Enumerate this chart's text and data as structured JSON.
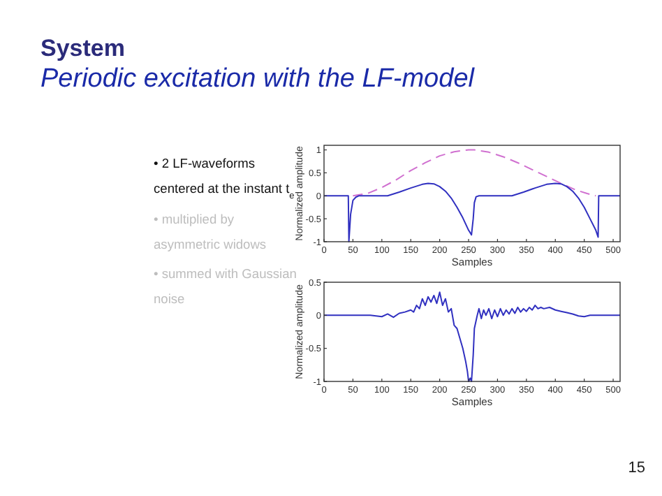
{
  "chart_data": [
    {
      "type": "other",
      "title": "System",
      "subtitle": "Periodic excitation with the LF-model",
      "annotations": [
        "• 2 LF-waveforms\ncentered at the instant t$_{e}$",
        "• multiplied by\nasymmetric widows",
        "• summed with Gaussian\nnoise",
        "15"
      ]
    },
    {
      "type": "line",
      "xlabel": "Samples",
      "ylabel": "Normalized amplitude",
      "xlim": [
        0,
        512
      ],
      "ylim": [
        -1,
        1.1
      ],
      "xticks": [
        0,
        50,
        100,
        150,
        200,
        250,
        300,
        350,
        400,
        450,
        500
      ],
      "yticks": [
        -1,
        -0.5,
        0,
        0.5,
        1
      ],
      "grid": false,
      "series": [
        {
          "color": "#d070d0",
          "line_style": "dashed",
          "x": [
            50,
            75,
            100,
            125,
            150,
            175,
            200,
            225,
            250,
            260,
            285,
            310,
            335,
            360,
            385,
            410,
            435,
            455,
            470
          ],
          "values": [
            0,
            0.05,
            0.18,
            0.35,
            0.55,
            0.72,
            0.87,
            0.96,
            1,
            1,
            0.95,
            0.85,
            0.72,
            0.57,
            0.42,
            0.27,
            0.13,
            0.05,
            0
          ]
        },
        {
          "color": "#3030c0",
          "line_style": "solid",
          "x": [
            0,
            42,
            43,
            46,
            50,
            55,
            60,
            110,
            130,
            150,
            170,
            180,
            190,
            200,
            210,
            220,
            230,
            240,
            250,
            255,
            258,
            260,
            263,
            268,
            325,
            345,
            365,
            385,
            400,
            410,
            420,
            430,
            440,
            450,
            460,
            470,
            474,
            475,
            512
          ],
          "values": [
            0,
            0,
            -1,
            -0.4,
            -0.1,
            -0.03,
            0,
            0,
            0.08,
            0.17,
            0.25,
            0.27,
            0.26,
            0.2,
            0.1,
            -0.05,
            -0.25,
            -0.48,
            -0.75,
            -0.85,
            -0.5,
            -0.15,
            -0.02,
            0,
            0,
            0.08,
            0.17,
            0.25,
            0.27,
            0.26,
            0.2,
            0.1,
            -0.05,
            -0.25,
            -0.5,
            -0.75,
            -0.9,
            0,
            0
          ]
        }
      ]
    },
    {
      "type": "line",
      "xlabel": "Samples",
      "ylabel": "Normalized amplitude",
      "xlim": [
        0,
        512
      ],
      "ylim": [
        -1,
        0.5
      ],
      "xticks": [
        0,
        50,
        100,
        150,
        200,
        250,
        300,
        350,
        400,
        450,
        500
      ],
      "yticks": [
        -1,
        -0.5,
        0,
        0.5
      ],
      "grid": false,
      "series": [
        {
          "color": "#3030c0",
          "line_style": "solid",
          "x": [
            0,
            80,
            100,
            110,
            120,
            130,
            140,
            150,
            155,
            160,
            165,
            170,
            175,
            180,
            185,
            190,
            195,
            200,
            205,
            210,
            215,
            220,
            225,
            230,
            235,
            240,
            245,
            248,
            250,
            253,
            255,
            258,
            260,
            265,
            268,
            272,
            276,
            280,
            285,
            290,
            295,
            300,
            305,
            310,
            315,
            320,
            325,
            330,
            335,
            340,
            345,
            350,
            355,
            360,
            365,
            370,
            375,
            380,
            390,
            400,
            410,
            420,
            430,
            440,
            450,
            460,
            512
          ],
          "values": [
            0,
            0,
            -0.02,
            0.02,
            -0.03,
            0.03,
            0.05,
            0.08,
            0.05,
            0.15,
            0.1,
            0.25,
            0.15,
            0.28,
            0.2,
            0.3,
            0.18,
            0.35,
            0.15,
            0.25,
            0.05,
            0.1,
            -0.15,
            -0.2,
            -0.35,
            -0.5,
            -0.7,
            -0.85,
            -1,
            -0.95,
            -1,
            -0.6,
            -0.2,
            0,
            0.1,
            -0.05,
            0.08,
            0,
            0.1,
            -0.05,
            0.08,
            -0.02,
            0.1,
            0,
            0.08,
            0.02,
            0.1,
            0.03,
            0.12,
            0.05,
            0.1,
            0.06,
            0.12,
            0.08,
            0.15,
            0.1,
            0.12,
            0.1,
            0.12,
            0.08,
            0.06,
            0.04,
            0.02,
            -0.01,
            -0.02,
            0,
            0
          ]
        }
      ]
    }
  ]
}
